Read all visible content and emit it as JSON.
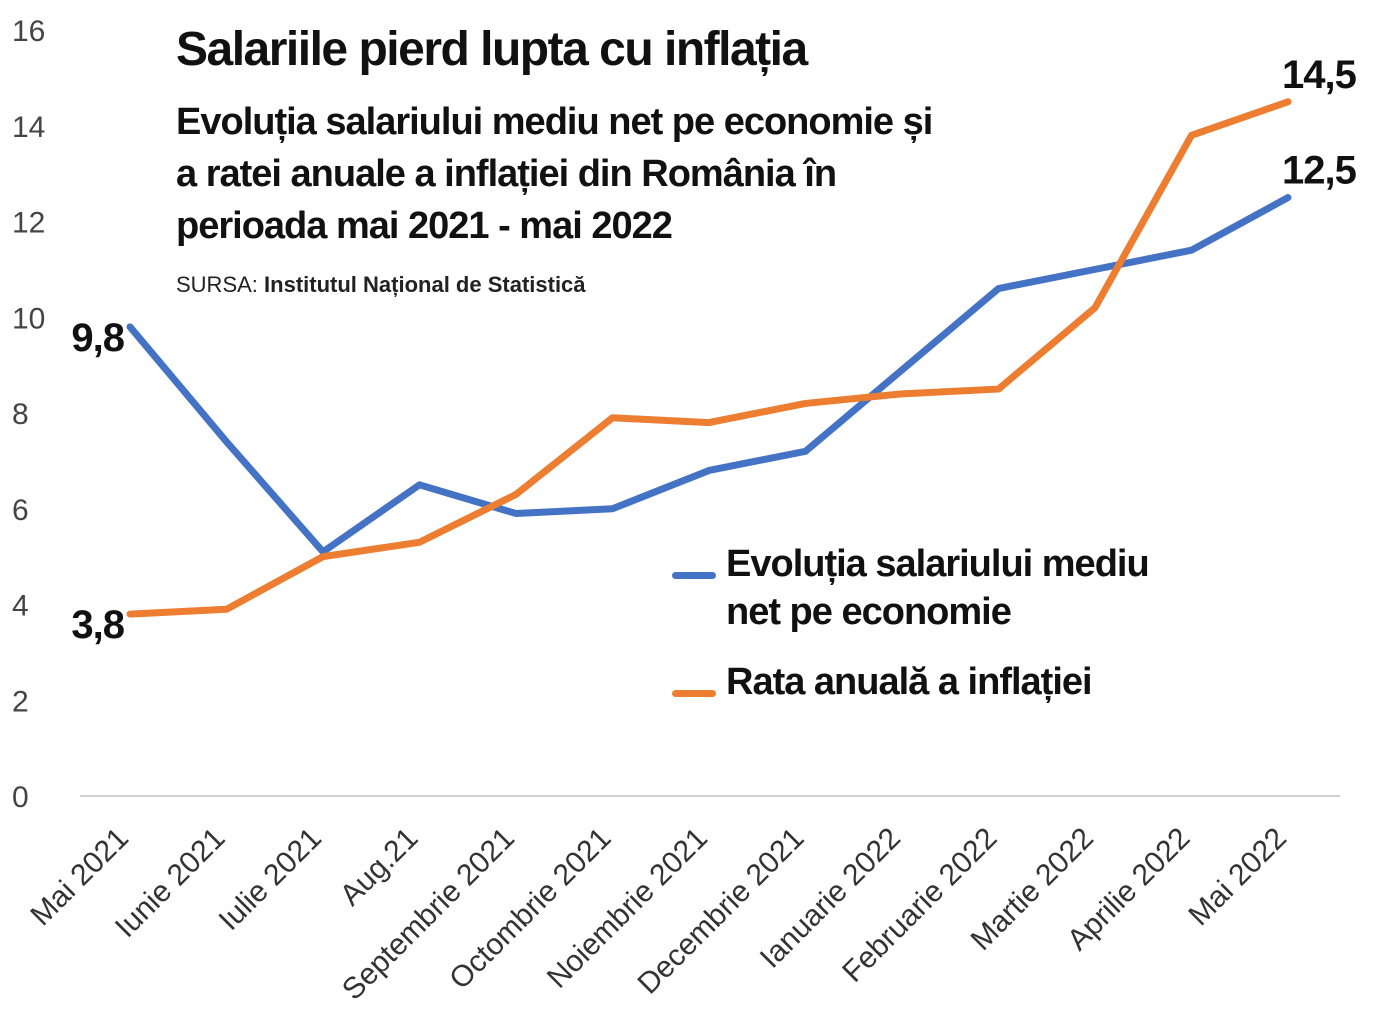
{
  "header": {
    "title": "Salariile pierd lupta cu inflația",
    "subtitle": "Evoluția salariului mediu net pe economie și a ratei anuale a inflației din România în perioada mai 2021 - mai 2022",
    "source_label": "SURSA:",
    "source_name": "Institutul Național de Statistică"
  },
  "chart_data": {
    "type": "line",
    "title": "Salariile pierd lupta cu inflația",
    "subtitle": "Evoluția salariului mediu net pe economie și a ratei anuale a inflației din România în perioada mai 2021 - mai 2022",
    "xlabel": "",
    "ylabel": "",
    "ylim": [
      0,
      16
    ],
    "yticks": [
      "0",
      "2",
      "4",
      "6",
      "8",
      "10",
      "12",
      "14",
      "16"
    ],
    "grid": false,
    "legend_position": "center-right",
    "categories": [
      "Mai 2021",
      "Iunie 2021",
      "Iulie 2021",
      "Aug.21",
      "Septembrie 2021",
      "Octombrie 2021",
      "Noiembrie 2021",
      "Decembrie 2021",
      "Ianuarie 2022",
      "Februarie 2022",
      "Martie 2022",
      "Aprilie 2022",
      "Mai 2022"
    ],
    "series": [
      {
        "name": "Evoluția salariului mediu net pe economie",
        "color": "#4472c4",
        "values": [
          9.8,
          7.4,
          5.1,
          6.5,
          5.9,
          6.0,
          6.8,
          7.2,
          8.9,
          10.6,
          11.0,
          11.4,
          12.5
        ],
        "labels": [
          {
            "index": 0,
            "text": "9,8"
          },
          {
            "index": 12,
            "text": "12,5"
          }
        ]
      },
      {
        "name": "Rata anuală a inflației",
        "color": "#ed7d31",
        "values": [
          3.8,
          3.9,
          5.0,
          5.3,
          6.3,
          7.9,
          7.8,
          8.2,
          8.4,
          8.5,
          10.2,
          13.8,
          14.5
        ],
        "labels": [
          {
            "index": 0,
            "text": "3,8"
          },
          {
            "index": 12,
            "text": "14,5"
          }
        ]
      }
    ]
  }
}
